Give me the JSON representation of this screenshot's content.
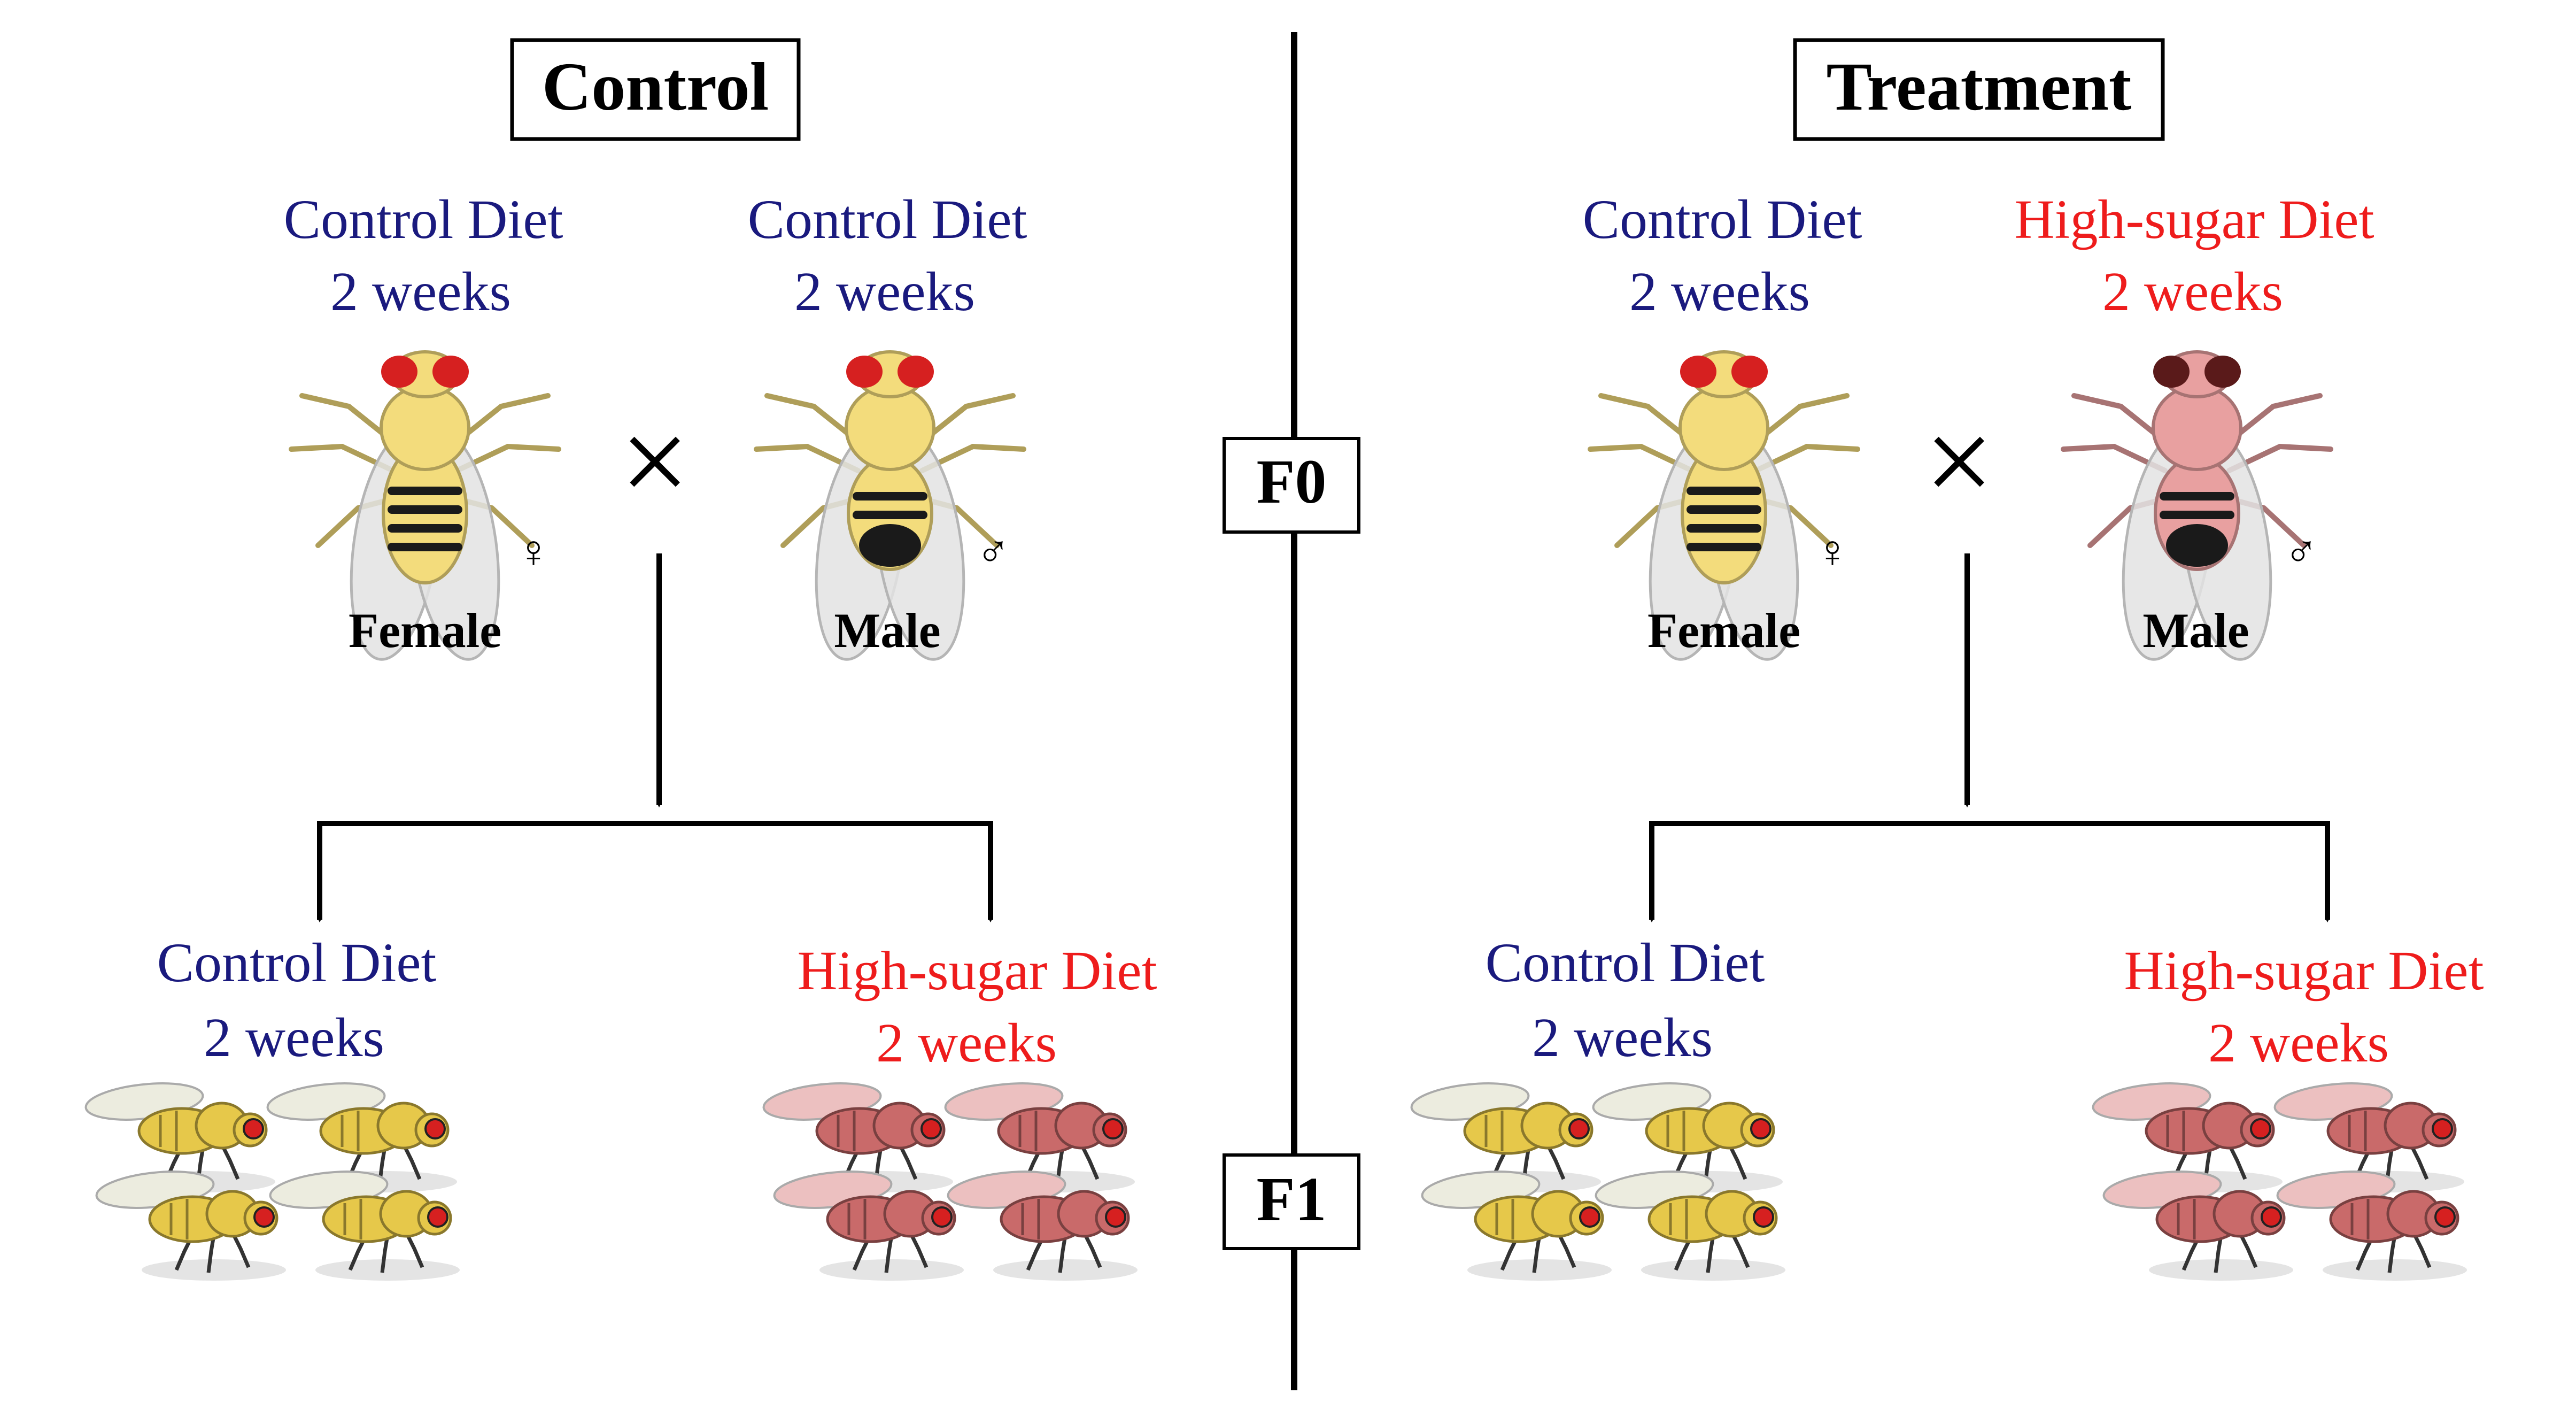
{
  "panels": [
    {
      "title": "Control",
      "parents": {
        "female": {
          "diet": "Control Diet",
          "duration": "2 weeks",
          "label": "Female",
          "symbol": "♀",
          "body": "#f3dc7c"
        },
        "male": {
          "diet": "Control Diet",
          "duration": "2 weeks",
          "label": "Male",
          "symbol": "♂",
          "body": "#f3dc7c"
        }
      },
      "cross_symbol": "×",
      "offspring": [
        {
          "diet": "Control Diet",
          "duration": "2 weeks",
          "body": "#e6c84a"
        },
        {
          "diet": "High-sugar Diet",
          "duration": "2 weeks",
          "body": "#c96a6a"
        }
      ]
    },
    {
      "title": "Treatment",
      "parents": {
        "female": {
          "diet": "Control Diet",
          "duration": "2 weeks",
          "label": "Female",
          "symbol": "♀",
          "body": "#f3dc7c"
        },
        "male": {
          "diet": "High-sugar Diet",
          "duration": "2 weeks",
          "label": "Male",
          "symbol": "♂",
          "body": "#e8a0a0"
        }
      },
      "cross_symbol": "×",
      "offspring": [
        {
          "diet": "Control Diet",
          "duration": "2 weeks",
          "body": "#e6c84a"
        },
        {
          "diet": "High-sugar Diet",
          "duration": "2 weeks",
          "body": "#c96a6a"
        }
      ]
    }
  ],
  "generations": [
    "F0",
    "F1"
  ],
  "colors": {
    "control_text": "#1a1a7e",
    "high_sugar_text": "#ee1c1c",
    "line": "#000000",
    "eye": "#d62020",
    "stripe": "#1a1a1a"
  }
}
